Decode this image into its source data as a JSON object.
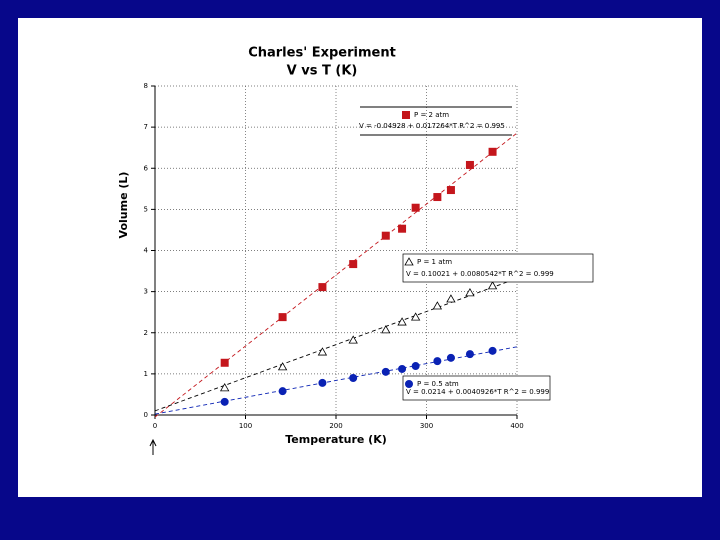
{
  "chart_data": {
    "type": "scatter",
    "title": "Charles' Experiment",
    "subtitle": "V vs T (K)",
    "x_label": "Temperature (K)",
    "y_label": "Volume (L)",
    "xlim": [
      0,
      400
    ],
    "xticks": [
      0,
      100,
      200,
      300,
      400
    ],
    "ylim": [
      0,
      8
    ],
    "yticks": [
      0,
      1,
      2,
      3,
      4,
      5,
      6,
      7,
      8
    ],
    "grid": true,
    "series": [
      {
        "name": "P = 2 atm",
        "color": "#c4161c",
        "marker": "square",
        "x": [
          77,
          141,
          185,
          219,
          255,
          273,
          288,
          312,
          327,
          348,
          373
        ],
        "values": [
          1.27,
          2.38,
          3.11,
          3.67,
          4.36,
          4.53,
          5.04,
          5.3,
          5.47,
          6.08,
          6.4
        ],
        "fit": {
          "intercept": -0.04928,
          "slope": 0.017264
        },
        "equation": "V = -0.04928 + 0.017264*T   R^2 = 0.995"
      },
      {
        "name": "P = 1 atm",
        "color": "#000000",
        "marker": "triangle",
        "x": [
          77,
          141,
          185,
          219,
          255,
          273,
          288,
          312,
          327,
          348,
          373
        ],
        "values": [
          0.66,
          1.17,
          1.53,
          1.82,
          2.07,
          2.26,
          2.38,
          2.65,
          2.82,
          2.97,
          3.14
        ],
        "fit": {
          "intercept": 0.10021,
          "slope": 0.0080542
        },
        "equation": "V = 0.10021 + 0.0080542*T   R^2 = 0.999"
      },
      {
        "name": "P = 0.5 atm",
        "color": "#0a22b4",
        "marker": "circle",
        "x": [
          77,
          141,
          185,
          219,
          255,
          273,
          288,
          312,
          327,
          348,
          373
        ],
        "values": [
          0.32,
          0.58,
          0.78,
          0.9,
          1.05,
          1.12,
          1.19,
          1.31,
          1.39,
          1.48,
          1.56
        ],
        "fit": {
          "intercept": 0.0214,
          "slope": 0.0040926
        },
        "equation": "V = 0.0214 + 0.0040926*T   R^2 = 0.999"
      }
    ]
  }
}
